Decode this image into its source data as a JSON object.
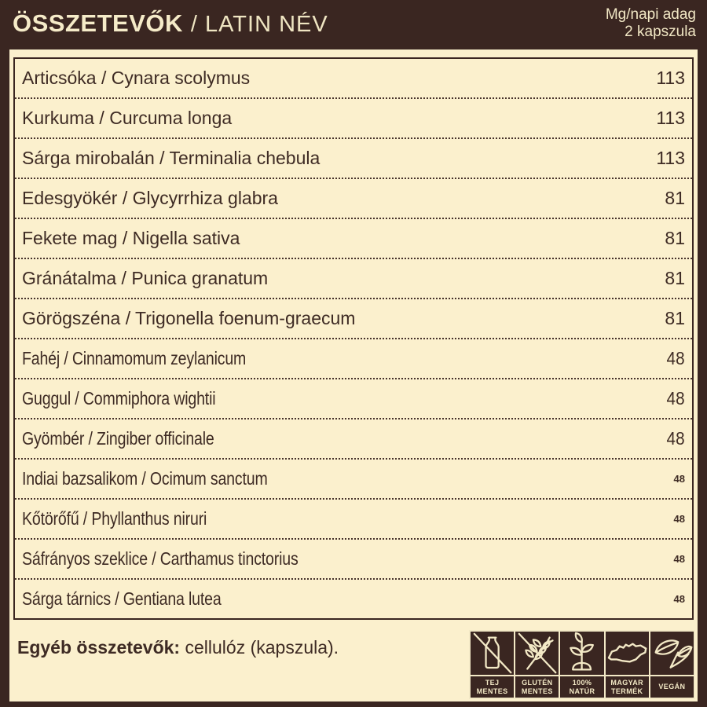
{
  "colors": {
    "background_brown": "#3a2621",
    "panel_cream": "#fbf0cd",
    "text_brown": "#3e2b24",
    "badge_line_cream": "#f3e9c6"
  },
  "header": {
    "title": "ÖSSZETEVŐK",
    "subtitle": "/ LATIN NÉV",
    "dose_line1": "Mg/napi adag",
    "dose_line2": "2 kapszula"
  },
  "table": {
    "rows": [
      {
        "name": "Articsóka / Cynara scolymus",
        "value": "113",
        "condensed": false,
        "small_value": false
      },
      {
        "name": "Kurkuma / Curcuma longa",
        "value": "113",
        "condensed": false,
        "small_value": false
      },
      {
        "name": "Sárga mirobalán / Terminalia chebula",
        "value": "113",
        "condensed": false,
        "small_value": false
      },
      {
        "name": "Edesgyökér / Glycyrrhiza glabra",
        "value": "81",
        "condensed": false,
        "small_value": false
      },
      {
        "name": "Fekete mag / Nigella sativa",
        "value": "81",
        "condensed": false,
        "small_value": false
      },
      {
        "name": "Gránátalma / Punica granatum",
        "value": "81",
        "condensed": false,
        "small_value": false
      },
      {
        "name": "Görögszéna / Trigonella foenum-graecum",
        "value": "81",
        "condensed": false,
        "small_value": false
      },
      {
        "name": "Fahéj / Cinnamomum zeylanicum",
        "value": "48",
        "condensed": true,
        "small_value": false
      },
      {
        "name": "Guggul / Commiphora wightii",
        "value": "48",
        "condensed": true,
        "small_value": false
      },
      {
        "name": "Gyömbér / Zingiber officinale",
        "value": "48",
        "condensed": true,
        "small_value": false
      },
      {
        "name": "Indiai bazsalikom / Ocimum sanctum",
        "value": "48",
        "condensed": true,
        "small_value": true
      },
      {
        "name": "Kőtörőfű / Phyllanthus niruri",
        "value": "48",
        "condensed": true,
        "small_value": true
      },
      {
        "name": "Sáfrányos szeklice / Carthamus tinctorius",
        "value": "48",
        "condensed": true,
        "small_value": true
      },
      {
        "name": "Sárga tárnics / Gentiana lutea",
        "value": "48",
        "condensed": true,
        "small_value": true
      }
    ]
  },
  "footer": {
    "other_label": "Egyéb összetevők:",
    "other_value": "cellulóz (kapszula)."
  },
  "badges": [
    {
      "icon": "no-milk-icon",
      "lines": [
        "TEJ",
        "MENTES"
      ]
    },
    {
      "icon": "no-gluten-icon",
      "lines": [
        "GLUTÉN",
        "MENTES"
      ]
    },
    {
      "icon": "natural-icon",
      "lines": [
        "100%",
        "NATÚR"
      ]
    },
    {
      "icon": "hungary-icon",
      "lines": [
        "MAGYAR",
        "TERMÉK"
      ]
    },
    {
      "icon": "vegan-icon",
      "lines": [
        "VEGÁN"
      ]
    }
  ]
}
